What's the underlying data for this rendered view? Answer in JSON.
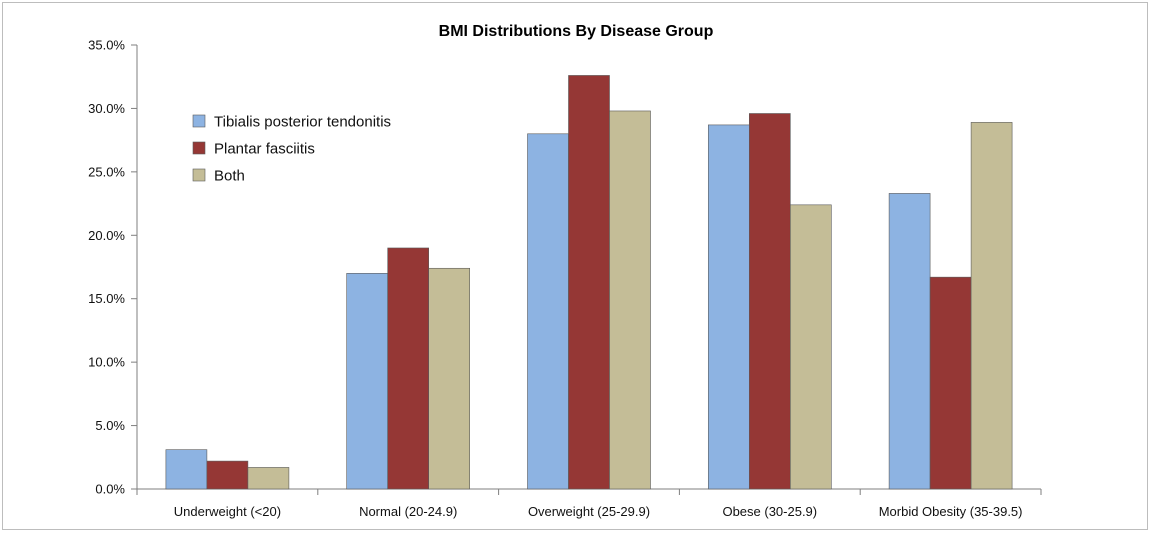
{
  "chart_data": {
    "type": "bar",
    "title": "BMI Distributions By Disease Group",
    "xlabel": "",
    "ylabel": "",
    "ylim": [
      0,
      35
    ],
    "yticks": [
      "0.0%",
      "5.0%",
      "10.0%",
      "15.0%",
      "20.0%",
      "25.0%",
      "30.0%",
      "35.0%"
    ],
    "categories": [
      "Underweight (<20)",
      "Normal (20-24.9)",
      "Overweight (25-29.9)",
      "Obese (30-25.9)",
      "Morbid Obesity (35-39.5)"
    ],
    "series": [
      {
        "name": "Tibialis posterior tendonitis",
        "color": "#8db3e2",
        "values": [
          3.1,
          17.0,
          28.0,
          28.7,
          23.3
        ]
      },
      {
        "name": "Plantar fasciitis",
        "color": "#953735",
        "values": [
          2.2,
          19.0,
          32.6,
          29.6,
          16.7
        ]
      },
      {
        "name": "Both",
        "color": "#c4bd97",
        "values": [
          1.7,
          17.4,
          29.8,
          22.4,
          28.9
        ]
      }
    ],
    "grid": false,
    "legend": "top-left"
  }
}
